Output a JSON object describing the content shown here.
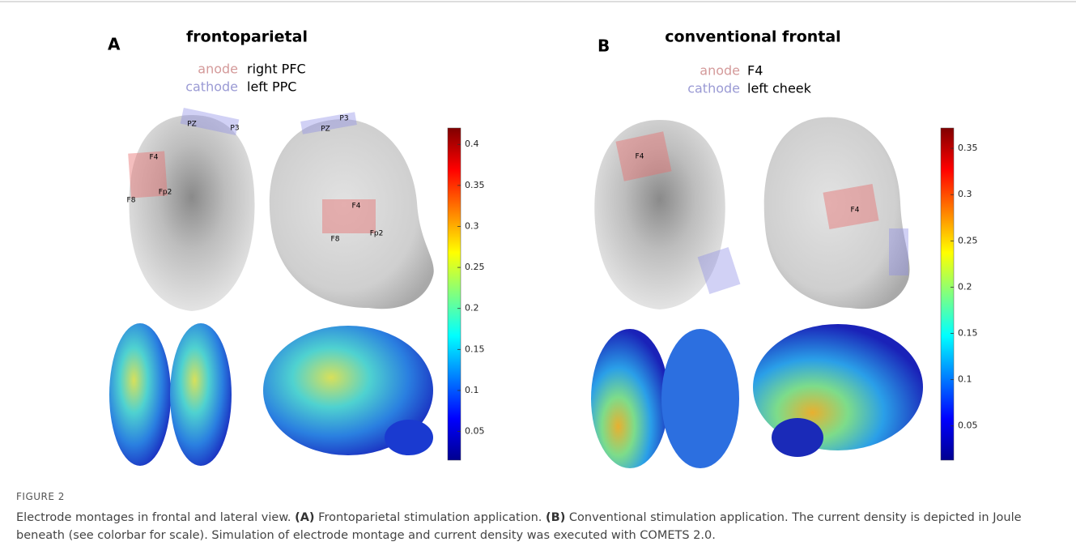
{
  "panels": [
    {
      "label": "A",
      "title": "frontoparietal",
      "montage": [
        {
          "role": "anode",
          "site": "right PFC"
        },
        {
          "role": "cathode",
          "site": "left PPC"
        }
      ],
      "views": [
        {
          "electrodes": [
            "PZ",
            "P3",
            "F4",
            "F8",
            "Fp2"
          ]
        },
        {
          "electrodes": [
            "P3",
            "PZ",
            "F4",
            "F8",
            "Fp2"
          ]
        }
      ],
      "colorbar": {
        "lim": [
          0.015,
          0.42
        ],
        "ticks": [
          0.05,
          0.1,
          0.15,
          0.2,
          0.25,
          0.3,
          0.35,
          0.4
        ]
      }
    },
    {
      "label": "B",
      "title": "conventional frontal",
      "montage": [
        {
          "role": "anode",
          "site": "F4"
        },
        {
          "role": "cathode",
          "site": "left cheek"
        }
      ],
      "views": [
        {
          "electrodes": [
            "F4"
          ]
        },
        {
          "electrodes": [
            "F4"
          ]
        }
      ],
      "colorbar": {
        "lim": [
          0.013,
          0.372
        ],
        "ticks": [
          0.05,
          0.1,
          0.15,
          0.2,
          0.25,
          0.3,
          0.35
        ]
      }
    }
  ],
  "caption": {
    "label": "FIGURE 2",
    "parts": [
      {
        "text": "Electrode montages in frontal and lateral view. ",
        "bold": false
      },
      {
        "text": "(A)",
        "bold": true
      },
      {
        "text": " Frontoparietal stimulation application. ",
        "bold": false
      },
      {
        "text": "(B)",
        "bold": true
      },
      {
        "text": " Conventional stimulation application. The current density is depicted in Joule beneath (see colorbar for scale). Simulation of electrode montage and current density was executed with COMETS 2.0.",
        "bold": false
      }
    ]
  }
}
